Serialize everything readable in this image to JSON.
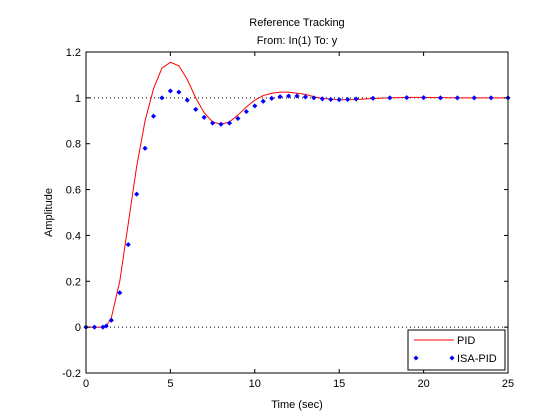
{
  "chart_data": {
    "type": "line",
    "title": "Reference Tracking",
    "subtitle": "From: In(1)  To: y",
    "xlabel": "Time (sec)",
    "ylabel": "Amplitude",
    "xlim": [
      0,
      25
    ],
    "ylim": [
      -0.2,
      1.2
    ],
    "xticks": [
      0,
      5,
      10,
      15,
      20,
      25
    ],
    "yticks": [
      -0.2,
      0,
      0.2,
      0.4,
      0.6,
      0.8,
      1,
      1.2
    ],
    "xtick_labels": [
      "0",
      "5",
      "10",
      "15",
      "20",
      "25"
    ],
    "ytick_labels": [
      "-0.2",
      "0",
      "0.2",
      "0.4",
      "0.6",
      "0.8",
      "1",
      "1.2"
    ],
    "reference_lines": [
      0,
      1
    ],
    "grid": false,
    "legend_position": "bottom-right",
    "series": [
      {
        "name": "PID",
        "style": "line",
        "color": "#ff0000",
        "x": [
          0,
          0.5,
          1.0,
          1.2,
          1.5,
          2.0,
          2.5,
          3.0,
          3.5,
          4.0,
          4.5,
          5.0,
          5.5,
          6.0,
          6.5,
          7.0,
          7.5,
          8.0,
          8.5,
          9.0,
          9.5,
          10.0,
          10.5,
          11.0,
          11.5,
          12.0,
          12.5,
          13.0,
          13.5,
          14.0,
          15.0,
          16.0,
          17.0,
          18.0,
          19.0,
          20.0,
          21.0,
          22.0,
          23.0,
          24.0,
          25.0
        ],
        "y": [
          0,
          0,
          0,
          0.005,
          0.04,
          0.2,
          0.45,
          0.7,
          0.9,
          1.04,
          1.13,
          1.155,
          1.14,
          1.08,
          1.0,
          0.935,
          0.895,
          0.885,
          0.895,
          0.925,
          0.96,
          0.99,
          1.01,
          1.02,
          1.025,
          1.025,
          1.02,
          1.015,
          1.005,
          0.998,
          0.992,
          0.993,
          0.997,
          1.0,
          1.002,
          1.002,
          1.001,
          1.0,
          1.0,
          1.0,
          1.0
        ]
      },
      {
        "name": "ISA-PID",
        "style": "markers",
        "color": "#0000ff",
        "x": [
          0,
          0.5,
          1.0,
          1.2,
          1.5,
          2.0,
          2.5,
          3.0,
          3.5,
          4.0,
          4.5,
          5.0,
          5.5,
          6.0,
          6.5,
          7.0,
          7.5,
          8.0,
          8.5,
          9.0,
          9.5,
          10.0,
          10.5,
          11.0,
          11.5,
          12.0,
          12.5,
          13.0,
          13.5,
          14.0,
          14.5,
          15.0,
          15.5,
          16.0,
          17.0,
          18.0,
          19.0,
          20.0,
          21.0,
          22.0,
          23.0,
          24.0,
          25.0
        ],
        "y": [
          0,
          0,
          0,
          0.005,
          0.03,
          0.15,
          0.36,
          0.58,
          0.78,
          0.92,
          1.0,
          1.03,
          1.025,
          0.99,
          0.95,
          0.915,
          0.89,
          0.885,
          0.89,
          0.91,
          0.94,
          0.965,
          0.985,
          0.998,
          1.005,
          1.008,
          1.008,
          1.004,
          1.0,
          0.996,
          0.993,
          0.992,
          0.993,
          0.995,
          0.998,
          1.0,
          1.001,
          1.001,
          1.0,
          1.0,
          1.0,
          1.0,
          1.0
        ]
      }
    ]
  }
}
